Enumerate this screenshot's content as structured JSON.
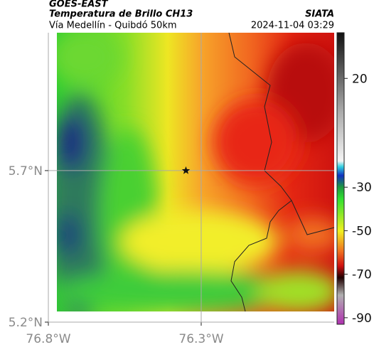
{
  "header": {
    "title": "GOES-EAST",
    "subtitle": "Temperatura de Brillo CH13",
    "location": "Vía Medellín - Quibdó 50km",
    "source": "SIATA",
    "datetime": "2024-11-04 03:29"
  },
  "map": {
    "xlim": [
      -76.8,
      -75.865
    ],
    "ylim": [
      5.2,
      6.155
    ],
    "xticks": [
      {
        "value": -76.8,
        "label": "76.8°W"
      },
      {
        "value": -76.3,
        "label": "76.3°W"
      }
    ],
    "yticks": [
      {
        "value": 5.7,
        "label": "5.7°N"
      },
      {
        "value": 5.2,
        "label": "5.2°N"
      }
    ],
    "grid": true,
    "marker": {
      "lon": -76.35,
      "lat": 5.7
    }
  },
  "colorbar": {
    "ylim": [
      -93,
      41
    ],
    "yticks": [
      20,
      -30,
      -50,
      -70,
      -90
    ]
  }
}
